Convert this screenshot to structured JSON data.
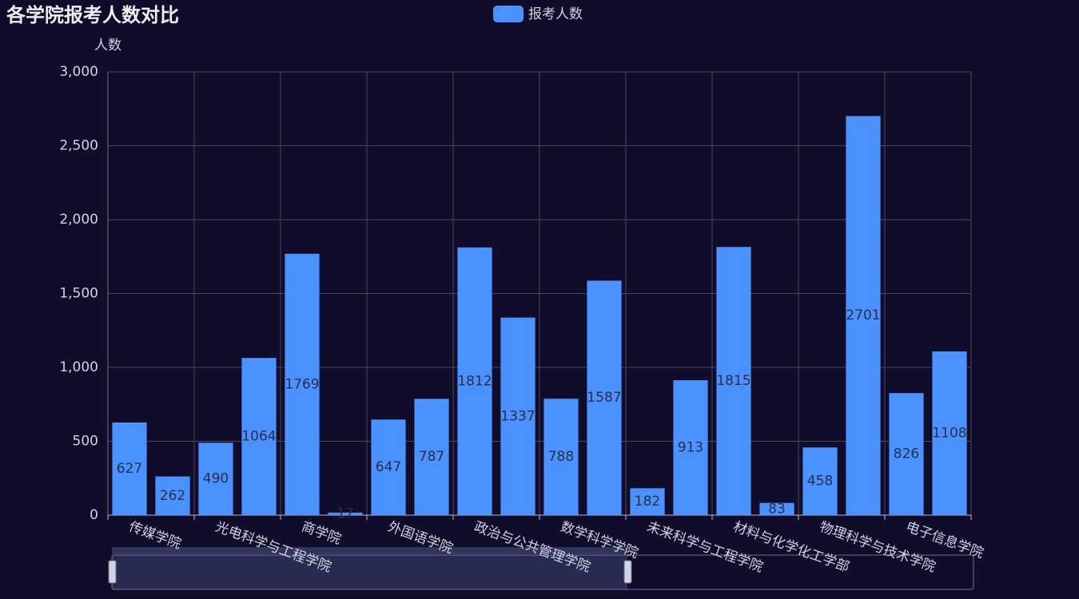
{
  "chart_data": {
    "type": "bar",
    "title": "各学院报考人数对比",
    "y_axis_label": "人数",
    "categories": [
      "传媒学院",
      null,
      "光电科学与工程学院",
      null,
      "商学院",
      null,
      "外国语学院",
      null,
      "政治与公共管理学院",
      null,
      "数学科学学院",
      null,
      "未来科学与工程学院",
      null,
      "材料与化学化工学部",
      null,
      "物理科学与技术学院",
      null,
      "电子信息学院",
      null
    ],
    "series": [
      {
        "name": "报考人数",
        "color": "#4992ff",
        "values": [
          627,
          262,
          490,
          1064,
          1769,
          17,
          647,
          787,
          1812,
          1337,
          788,
          1587,
          182,
          913,
          1815,
          83,
          458,
          2701,
          826,
          1108
        ]
      }
    ],
    "ylim": [
      0,
      3000
    ],
    "yticks": [
      0,
      500,
      {
        "value": 1000,
        "label": "1,000"
      },
      {
        "value": 1500,
        "label": "1,500"
      },
      {
        "value": 2000,
        "label": "2,000"
      },
      {
        "value": 2500,
        "label": "2,500"
      },
      {
        "value": 3000,
        "label": "3,000"
      }
    ],
    "grid": true,
    "legend": "top"
  }
}
